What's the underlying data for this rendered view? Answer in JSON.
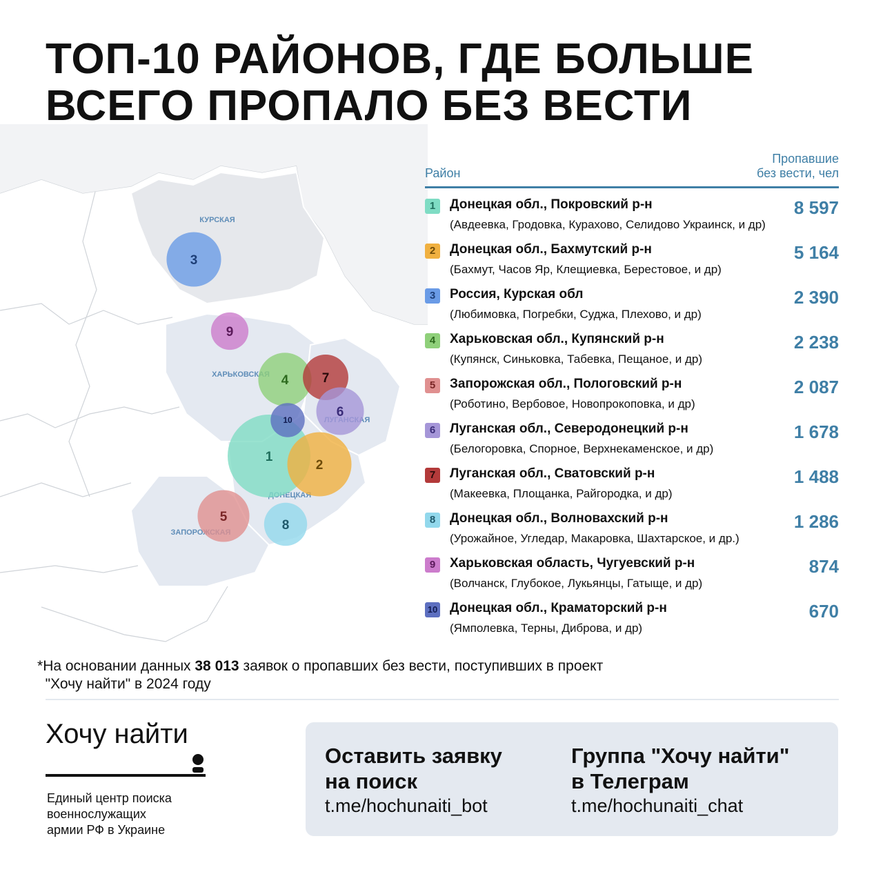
{
  "title": [
    "ТОП-10 РАЙОНОВ, ГДЕ БОЛЬШЕ",
    "ВСЕГО ПРОПАЛО БЕЗ ВЕСТИ"
  ],
  "table": {
    "col_district": "Район",
    "col_missing": [
      "Пропавшие",
      "без вести, чел"
    ],
    "rows": [
      {
        "rank": "1",
        "name": "Донецкая обл., Покровский р-н",
        "places": "(Авдеевка, Гродовка,  Курахово, Селидово Украинск, и др)",
        "value": "8 597",
        "num": 8597,
        "color": "#7fdcc4",
        "text": "#1f6e5c"
      },
      {
        "rank": "2",
        "name": "Донецкая обл., Бахмутский р-н",
        "places": " (Бахмут, Часов Яр, Клещиевка, Берестовое, и др)",
        "value": "5 164",
        "num": 5164,
        "color": "#f0b040",
        "text": "#6d4a08"
      },
      {
        "rank": "3",
        "name": "Россия, Курская обл",
        "places": "(Любимовка, Погребки, Суджа, Плехово, и др)",
        "value": "2 390",
        "num": 2390,
        "color": "#6a9be6",
        "text": "#1e3f78"
      },
      {
        "rank": "4",
        "name": "Харьковская обл., Купянский р-н",
        "places": "(Купянск, Синьковка, Табевка, Пещаное, и др)",
        "value": "2 238",
        "num": 2238,
        "color": "#8fd07a",
        "text": "#2d6a1e"
      },
      {
        "rank": "5",
        "name": "Запорожская обл., Пологовский р-н",
        "places": "(Роботино, Вербовое, Новопрокоповка, и др)",
        "value": "2 087",
        "num": 2087,
        "color": "#e09090",
        "text": "#7a2626"
      },
      {
        "rank": "6",
        "name": "Луганская обл., Северодонецкий р-н",
        "places": "(Белогоровка, Спорное, Верхнекаменское, и др)",
        "value": "1 678",
        "num": 1678,
        "color": "#a596d8",
        "text": "#3a2c78"
      },
      {
        "rank": "7",
        "name": "Луганская обл., Сватовский р-н",
        "places": "(Макеевка, Площанка, Райгородка, и др)",
        "value": "1 488",
        "num": 1488,
        "color": "#b33a3a",
        "text": "#2a0a0a"
      },
      {
        "rank": "8",
        "name": "Донецкая обл., Волновахский р-н",
        "places": "(Урожайное, Угледар, Макаровка, Шахтарское, и др.)",
        "value": "1 286",
        "num": 1286,
        "color": "#92d8ec",
        "text": "#1f5a6c"
      },
      {
        "rank": "9",
        "name": "Харьковская область, Чугуевский р-н",
        "places": "(Волчанск, Глубокое, Лукьянцы, Гатыще, и др)",
        "value": "874",
        "num": 874,
        "color": "#cc7ccc",
        "text": "#5a1a5a"
      },
      {
        "rank": "10",
        "name": "Донецкая обл., Краматорский р-н",
        "places": "(Ямполевка, Терны, Диброва, и др)",
        "value": "670",
        "num": 670,
        "color": "#5d6fc0",
        "text": "#101a50"
      }
    ]
  },
  "map": {
    "region_labels": [
      "КУРСКАЯ",
      "ХАРЬКОВСКАЯ",
      "ЛУГАНСКАЯ",
      "ДОНЕЦКАЯ",
      "ЗАПОРОЖСКАЯ"
    ],
    "label_color": "#5f8db8",
    "region_fill": "#e4e9f1"
  },
  "note": {
    "asterisk": "*",
    "before": "На основании данных ",
    "bold": "38 013",
    "after": " заявок о пропавших без вести, поступивших в проект",
    "line2": "\"Хочу найти\" в 2024 году"
  },
  "footer": {
    "logo": "Хочу найти",
    "tagline": [
      "Единый центр поиска",
      "военнослужащих",
      "армии РФ в Украине"
    ],
    "bot_title": [
      "Оставить заявку",
      "на поиск"
    ],
    "bot_link": "t.me/hochunaiti_bot",
    "chat_title": [
      "Группа \"Хочу найти\"",
      "в Телеграм"
    ],
    "chat_link": "t.me/hochunaiti_chat"
  }
}
